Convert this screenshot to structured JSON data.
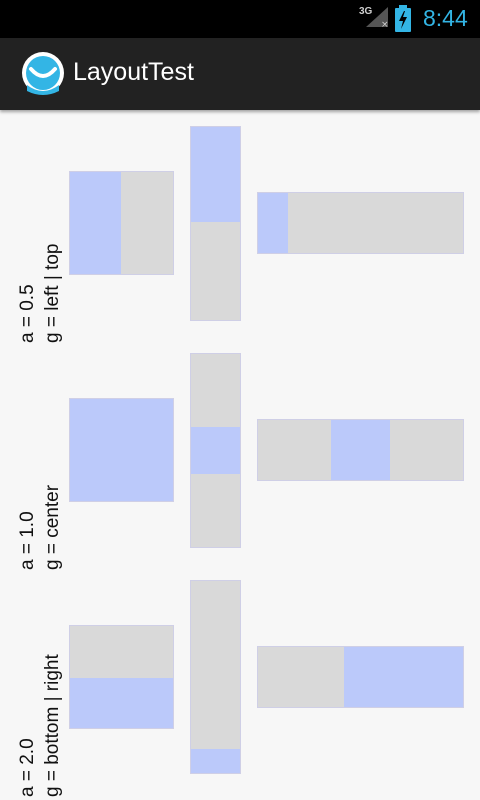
{
  "status_bar": {
    "network": "3G",
    "time": "8:44",
    "accent_color": "#33b5e5",
    "icons": [
      "signal-icon",
      "battery-charging-icon"
    ]
  },
  "action_bar": {
    "title": "LayoutTest",
    "app_icon": "app-logo-icon"
  },
  "rows": [
    {
      "line1": "a = 0.5",
      "line2": "g = left | top"
    },
    {
      "line1": "a = 1.0",
      "line2": "g = center"
    },
    {
      "line1": "a = 2.0",
      "line2": "g = bottom | right"
    }
  ],
  "colors": {
    "frame": "#d9d9d9",
    "content": "#bbc9fa"
  }
}
